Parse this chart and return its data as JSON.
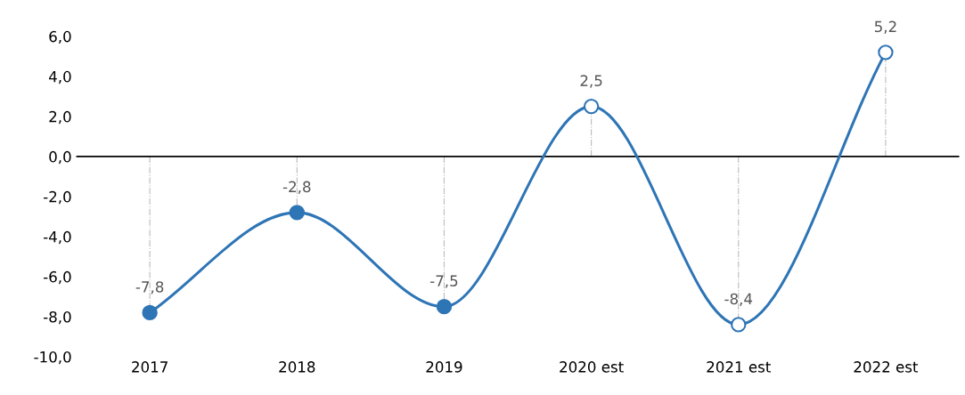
{
  "chart_data": {
    "type": "line",
    "categories": [
      "2017",
      "2018",
      "2019",
      "2020 est",
      "2021 est",
      "2022 est"
    ],
    "series": [
      {
        "color": "#2e75b6",
        "values": [
          -7.8,
          -2.8,
          -7.5,
          2.5,
          -8.4,
          5.2
        ],
        "colors": [
          "#2e75b6",
          "#2e75b6",
          "#2e75b6",
          "#ffffff",
          "#ffffff",
          "#ffffff"
        ],
        "value_labels": [
          "-7,8",
          "-2,8",
          "-7,5",
          "2,5",
          "-8,4",
          "5,2"
        ]
      }
    ],
    "ylim": [
      -10,
      6
    ],
    "yticks": [
      {
        "value": -10,
        "label": "-10,0"
      },
      {
        "value": -8,
        "label": "-8,0"
      },
      {
        "value": -6,
        "label": "-6,0"
      },
      {
        "value": -4,
        "label": "-4,0"
      },
      {
        "value": -2,
        "label": "-2,0"
      },
      {
        "value": 0,
        "label": "0,0"
      },
      {
        "value": 2,
        "label": "2,0"
      },
      {
        "value": 4,
        "label": "4,0"
      },
      {
        "value": 6,
        "label": "6,0"
      }
    ],
    "ref_lines": [
      {
        "axis": "y",
        "value": 0,
        "color": "#000000"
      }
    ],
    "marker": "circle",
    "line_style": "solid",
    "grid": false,
    "legend": false
  }
}
